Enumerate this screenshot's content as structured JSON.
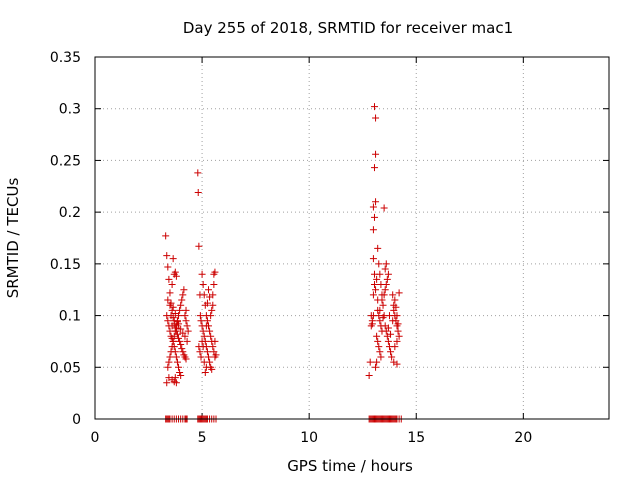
{
  "chart_data": {
    "type": "scatter",
    "title": "Day 255 of 2018, SRMTID for receiver mac1",
    "xlabel": "GPS time / hours",
    "ylabel": "SRMTID / TECUs",
    "xlim": [
      0,
      24
    ],
    "ylim": [
      0,
      0.35
    ],
    "xticks": [
      0,
      5,
      10,
      15,
      20
    ],
    "xtick_labels": [
      "0",
      "5",
      "10",
      "15",
      "20"
    ],
    "yticks": [
      0,
      0.05,
      0.1,
      0.15,
      0.2,
      0.25,
      0.3,
      0.35
    ],
    "ytick_labels": [
      "0",
      "0.05",
      "0.1",
      "0.15",
      "0.2",
      "0.25",
      "0.3",
      "0.35"
    ],
    "grid": true,
    "marker": "plus",
    "color": "#cc0000",
    "series": [
      {
        "name": "SRMTID",
        "points": [
          [
            3.3,
            0.177
          ],
          [
            3.35,
            0.158
          ],
          [
            3.4,
            0.147
          ],
          [
            3.45,
            0.135
          ],
          [
            3.5,
            0.122
          ],
          [
            3.55,
            0.112
          ],
          [
            3.6,
            0.105
          ],
          [
            3.65,
            0.098
          ],
          [
            3.7,
            0.092
          ],
          [
            3.75,
            0.088
          ],
          [
            3.8,
            0.085
          ],
          [
            3.85,
            0.082
          ],
          [
            3.9,
            0.078
          ],
          [
            3.95,
            0.075
          ],
          [
            4.0,
            0.072
          ],
          [
            4.05,
            0.068
          ],
          [
            4.1,
            0.065
          ],
          [
            4.15,
            0.062
          ],
          [
            4.2,
            0.06
          ],
          [
            4.25,
            0.058
          ],
          [
            3.35,
            0.1
          ],
          [
            3.4,
            0.095
          ],
          [
            3.45,
            0.09
          ],
          [
            3.5,
            0.085
          ],
          [
            3.55,
            0.08
          ],
          [
            3.6,
            0.078
          ],
          [
            3.65,
            0.075
          ],
          [
            3.7,
            0.07
          ],
          [
            3.75,
            0.065
          ],
          [
            3.8,
            0.06
          ],
          [
            3.85,
            0.055
          ],
          [
            3.9,
            0.05
          ],
          [
            3.95,
            0.045
          ],
          [
            4.0,
            0.042
          ],
          [
            3.4,
            0.05
          ],
          [
            3.45,
            0.055
          ],
          [
            3.5,
            0.06
          ],
          [
            3.55,
            0.065
          ],
          [
            3.6,
            0.07
          ],
          [
            3.65,
            0.075
          ],
          [
            3.7,
            0.08
          ],
          [
            3.75,
            0.085
          ],
          [
            3.8,
            0.09
          ],
          [
            3.85,
            0.095
          ],
          [
            3.9,
            0.1
          ],
          [
            3.95,
            0.105
          ],
          [
            4.0,
            0.11
          ],
          [
            4.05,
            0.115
          ],
          [
            4.1,
            0.12
          ],
          [
            4.15,
            0.125
          ],
          [
            3.4,
            0.115
          ],
          [
            3.5,
            0.11
          ],
          [
            3.6,
            0.13
          ],
          [
            3.65,
            0.155
          ],
          [
            3.7,
            0.14
          ],
          [
            3.75,
            0.142
          ],
          [
            3.8,
            0.138
          ],
          [
            3.35,
            0.035
          ],
          [
            3.45,
            0.04
          ],
          [
            3.6,
            0.038
          ],
          [
            3.7,
            0.036
          ],
          [
            3.75,
            0.04
          ],
          [
            3.8,
            0.035
          ],
          [
            4.2,
            0.1
          ],
          [
            4.25,
            0.095
          ],
          [
            4.3,
            0.09
          ],
          [
            4.2,
            0.08
          ],
          [
            4.3,
            0.075
          ],
          [
            4.35,
            0.085
          ],
          [
            4.25,
            0.105
          ],
          [
            3.6,
            0.09
          ],
          [
            3.7,
            0.095
          ],
          [
            3.8,
            0.088
          ],
          [
            3.9,
            0.092
          ],
          [
            4.0,
            0.087
          ],
          [
            4.1,
            0.083
          ],
          [
            3.55,
            0.1
          ],
          [
            3.65,
            0.108
          ],
          [
            3.75,
            0.102
          ],
          [
            3.85,
            0.094
          ],
          [
            4.8,
            0.238
          ],
          [
            4.82,
            0.219
          ],
          [
            4.85,
            0.167
          ],
          [
            4.9,
            0.12
          ],
          [
            4.92,
            0.1
          ],
          [
            4.95,
            0.095
          ],
          [
            5.0,
            0.09
          ],
          [
            5.05,
            0.085
          ],
          [
            5.1,
            0.08
          ],
          [
            5.15,
            0.075
          ],
          [
            5.2,
            0.07
          ],
          [
            5.25,
            0.065
          ],
          [
            5.3,
            0.06
          ],
          [
            5.35,
            0.055
          ],
          [
            5.4,
            0.05
          ],
          [
            5.45,
            0.048
          ],
          [
            5.0,
            0.14
          ],
          [
            5.05,
            0.13
          ],
          [
            5.1,
            0.12
          ],
          [
            5.15,
            0.11
          ],
          [
            5.2,
            0.1
          ],
          [
            5.25,
            0.095
          ],
          [
            5.3,
            0.09
          ],
          [
            5.35,
            0.085
          ],
          [
            5.4,
            0.08
          ],
          [
            5.45,
            0.075
          ],
          [
            5.5,
            0.07
          ],
          [
            5.55,
            0.065
          ],
          [
            5.6,
            0.06
          ],
          [
            5.5,
            0.11
          ],
          [
            5.5,
            0.12
          ],
          [
            5.55,
            0.13
          ],
          [
            5.55,
            0.14
          ],
          [
            5.6,
            0.142
          ],
          [
            5.45,
            0.105
          ],
          [
            5.4,
            0.1
          ],
          [
            5.35,
            0.118
          ],
          [
            5.3,
            0.125
          ],
          [
            5.25,
            0.112
          ],
          [
            5.2,
            0.09
          ],
          [
            5.15,
            0.045
          ],
          [
            5.2,
            0.05
          ],
          [
            5.1,
            0.055
          ],
          [
            4.95,
            0.06
          ],
          [
            4.9,
            0.065
          ],
          [
            4.85,
            0.07
          ],
          [
            5.0,
            0.075
          ],
          [
            5.05,
            0.07
          ],
          [
            5.6,
            0.075
          ],
          [
            5.65,
            0.062
          ],
          [
            12.8,
            0.042
          ],
          [
            12.85,
            0.055
          ],
          [
            12.9,
            0.09
          ],
          [
            12.95,
            0.095
          ],
          [
            13.0,
            0.1
          ],
          [
            13.0,
            0.12
          ],
          [
            13.05,
            0.13
          ],
          [
            13.05,
            0.14
          ],
          [
            13.0,
            0.155
          ],
          [
            13.0,
            0.183
          ],
          [
            13.05,
            0.195
          ],
          [
            13.0,
            0.205
          ],
          [
            13.1,
            0.21
          ],
          [
            13.05,
            0.243
          ],
          [
            13.1,
            0.256
          ],
          [
            13.1,
            0.291
          ],
          [
            13.05,
            0.302
          ],
          [
            13.2,
            0.165
          ],
          [
            13.25,
            0.15
          ],
          [
            13.3,
            0.14
          ],
          [
            13.35,
            0.13
          ],
          [
            13.4,
            0.12
          ],
          [
            13.45,
            0.11
          ],
          [
            13.5,
            0.1
          ],
          [
            13.55,
            0.09
          ],
          [
            13.6,
            0.085
          ],
          [
            13.65,
            0.08
          ],
          [
            13.7,
            0.075
          ],
          [
            13.75,
            0.07
          ],
          [
            13.8,
            0.065
          ],
          [
            13.2,
            0.105
          ],
          [
            13.25,
            0.1
          ],
          [
            13.3,
            0.095
          ],
          [
            13.35,
            0.09
          ],
          [
            13.4,
            0.085
          ],
          [
            13.15,
            0.08
          ],
          [
            13.2,
            0.075
          ],
          [
            13.25,
            0.07
          ],
          [
            13.3,
            0.065
          ],
          [
            13.35,
            0.06
          ],
          [
            13.1,
            0.05
          ],
          [
            13.15,
            0.055
          ],
          [
            13.4,
            0.115
          ],
          [
            13.5,
            0.12
          ],
          [
            13.55,
            0.125
          ],
          [
            13.6,
            0.13
          ],
          [
            13.65,
            0.135
          ],
          [
            13.7,
            0.14
          ],
          [
            13.6,
            0.15
          ],
          [
            13.55,
            0.145
          ],
          [
            13.5,
            0.204
          ],
          [
            13.9,
            0.12
          ],
          [
            13.95,
            0.11
          ],
          [
            14.0,
            0.1
          ],
          [
            14.05,
            0.095
          ],
          [
            14.1,
            0.09
          ],
          [
            14.15,
            0.085
          ],
          [
            14.2,
            0.08
          ],
          [
            14.1,
            0.075
          ],
          [
            14.0,
            0.07
          ],
          [
            13.9,
            0.095
          ],
          [
            13.95,
            0.105
          ],
          [
            14.0,
            0.115
          ],
          [
            14.05,
            0.108
          ],
          [
            14.1,
            0.1
          ],
          [
            14.15,
            0.092
          ],
          [
            14.2,
            0.122
          ],
          [
            13.85,
            0.06
          ],
          [
            13.95,
            0.055
          ],
          [
            14.1,
            0.053
          ],
          [
            12.9,
            0.1
          ],
          [
            12.95,
            0.092
          ],
          [
            13.1,
            0.125
          ],
          [
            13.15,
            0.135
          ],
          [
            13.2,
            0.115
          ],
          [
            13.3,
            0.105
          ],
          [
            13.45,
            0.098
          ],
          [
            13.7,
            0.088
          ],
          [
            13.8,
            0.082
          ],
          [
            13.75,
            0.1
          ],
          [
            3.3,
            0.0
          ],
          [
            3.35,
            0.0
          ],
          [
            3.4,
            0.0
          ],
          [
            3.45,
            0.0
          ],
          [
            3.5,
            0.0
          ],
          [
            3.6,
            0.0
          ],
          [
            3.7,
            0.0
          ],
          [
            3.8,
            0.0
          ],
          [
            3.9,
            0.0
          ],
          [
            4.0,
            0.0
          ],
          [
            4.1,
            0.0
          ],
          [
            4.2,
            0.0
          ],
          [
            4.25,
            0.0
          ],
          [
            4.3,
            0.0
          ],
          [
            4.8,
            0.0
          ],
          [
            4.85,
            0.0
          ],
          [
            4.9,
            0.0
          ],
          [
            4.95,
            0.0
          ],
          [
            5.0,
            0.0
          ],
          [
            5.05,
            0.0
          ],
          [
            5.1,
            0.0
          ],
          [
            5.15,
            0.0
          ],
          [
            5.2,
            0.0
          ],
          [
            5.25,
            0.0
          ],
          [
            5.35,
            0.0
          ],
          [
            5.45,
            0.0
          ],
          [
            5.55,
            0.0
          ],
          [
            5.65,
            0.0
          ],
          [
            12.8,
            0.0
          ],
          [
            12.85,
            0.0
          ],
          [
            12.9,
            0.0
          ],
          [
            12.95,
            0.0
          ],
          [
            13.0,
            0.0
          ],
          [
            13.05,
            0.0
          ],
          [
            13.1,
            0.0
          ],
          [
            13.15,
            0.0
          ],
          [
            13.2,
            0.0
          ],
          [
            13.25,
            0.0
          ],
          [
            13.3,
            0.0
          ],
          [
            13.35,
            0.0
          ],
          [
            13.4,
            0.0
          ],
          [
            13.45,
            0.0
          ],
          [
            13.5,
            0.0
          ],
          [
            13.55,
            0.0
          ],
          [
            13.6,
            0.0
          ],
          [
            13.65,
            0.0
          ],
          [
            13.7,
            0.0
          ],
          [
            13.75,
            0.0
          ],
          [
            13.8,
            0.0
          ],
          [
            13.85,
            0.0
          ],
          [
            13.9,
            0.0
          ],
          [
            13.95,
            0.0
          ],
          [
            14.0,
            0.0
          ],
          [
            14.05,
            0.0
          ],
          [
            14.1,
            0.0
          ],
          [
            14.2,
            0.0
          ],
          [
            14.3,
            0.0
          ]
        ]
      }
    ]
  }
}
